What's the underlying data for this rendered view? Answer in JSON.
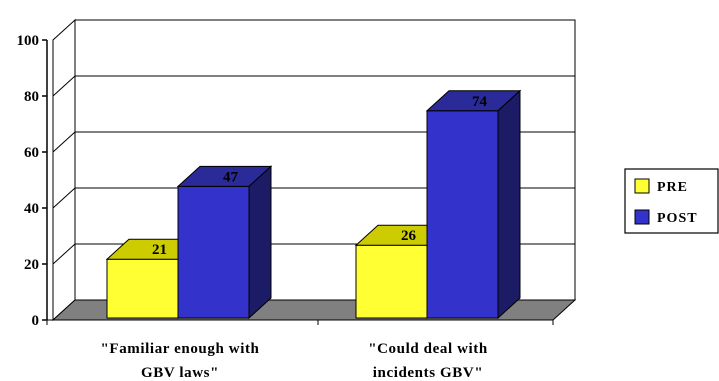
{
  "chart_data": {
    "type": "bar",
    "categories": [
      "\"Familiar enough with GBV laws\"",
      "\"Could deal with incidents GBV\""
    ],
    "category_lines": [
      [
        "\"Familiar enough with",
        "GBV laws\""
      ],
      [
        "\"Could deal with",
        "incidents GBV\""
      ]
    ],
    "series": [
      {
        "name": "PRE",
        "values": [
          21,
          26
        ],
        "value_labels": [
          "21",
          "26"
        ],
        "color": "#ffff33",
        "color_top": "#cccc00",
        "color_side": "#999900"
      },
      {
        "name": "POST",
        "values": [
          47,
          74
        ],
        "value_labels": [
          "47",
          "74"
        ],
        "color": "#3333cc",
        "color_top": "#2a2a99",
        "color_side": "#1c1c66"
      }
    ],
    "ylim": [
      0,
      100
    ],
    "yticks": [
      0,
      20,
      40,
      60,
      80,
      100
    ],
    "ytick_labels": [
      "0",
      "20",
      "40",
      "60",
      "80",
      "100"
    ],
    "grid": true,
    "legend": "right",
    "floor_color": "#808080",
    "title": "",
    "xlabel": "",
    "ylabel": ""
  }
}
